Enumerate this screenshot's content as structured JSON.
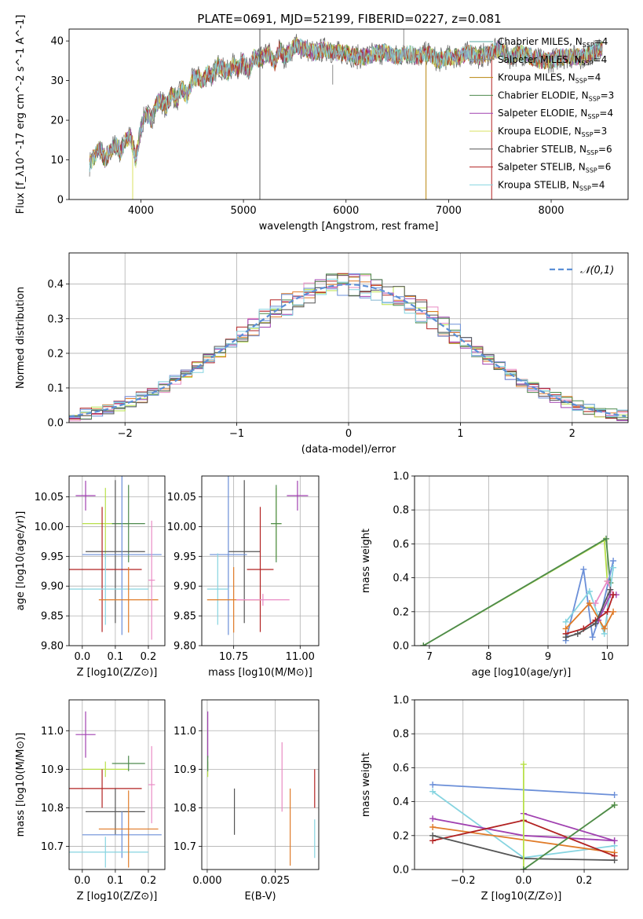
{
  "figure": {
    "title": "PLATE=0691, MJD=52199, FIBERID=0227, z=0.081"
  },
  "colors": {
    "Chabrier MILES": "#5aa9a1",
    "Salpeter MILES": "#8a8a8a",
    "Kroupa MILES": "#b8860b",
    "Chabrier ELODIE": "#4d8a4d",
    "Salpeter ELODIE": "#a040b0",
    "Kroupa ELODIE": "#d8e060",
    "Chabrier STELIB": "#555555",
    "Salpeter STELIB": "#b22222",
    "Kroupa STELIB": "#86d4e0",
    "normal_curve": "#5b8fd6",
    "pink": "#e98bc4",
    "orange": "#e07b28",
    "blue": "#6b8fd8",
    "lime": "#b8e04a"
  },
  "chart_data": [
    {
      "id": "spectrum",
      "type": "line",
      "xlabel": "wavelength [Angstrom, rest frame]",
      "ylabel": "Flux [f_λ10^-17 erg cm^-2 s^-1 A^-1]",
      "xlim": [
        3300,
        8750
      ],
      "ylim": [
        0,
        43
      ],
      "xticks": [
        4000,
        5000,
        6000,
        7000,
        8000
      ],
      "yticks": [
        0,
        10,
        20,
        30,
        40
      ],
      "legend_position": "upper-right",
      "legend": [
        {
          "model": "Chabrier MILES",
          "n": "4"
        },
        {
          "model": "Salpeter MILES",
          "n": "4"
        },
        {
          "model": "Kroupa MILES",
          "n": "4"
        },
        {
          "model": "Chabrier ELODIE",
          "n": "3"
        },
        {
          "model": "Salpeter ELODIE",
          "n": "4"
        },
        {
          "model": "Kroupa ELODIE",
          "n": "3"
        },
        {
          "model": "Chabrier STELIB",
          "n": "6"
        },
        {
          "model": "Salpeter STELIB",
          "n": "6"
        },
        {
          "model": "Kroupa STELIB",
          "n": "4"
        }
      ],
      "x": [
        3500,
        3550,
        3600,
        3650,
        3700,
        3750,
        3800,
        3850,
        3900,
        3950,
        4000,
        4050,
        4100,
        4150,
        4200,
        4250,
        4300,
        4350,
        4400,
        4450,
        4500,
        4550,
        4600,
        4650,
        4700,
        4750,
        4800,
        4850,
        4900,
        4950,
        5000,
        5050,
        5100,
        5150,
        5200,
        5250,
        5300,
        5350,
        5400,
        5450,
        5500,
        5600,
        5700,
        5800,
        5900,
        6000,
        6100,
        6200,
        6300,
        6400,
        6500,
        6600,
        6700,
        6800,
        6900,
        7000,
        7100,
        7200,
        7300,
        7400,
        7500,
        7600,
        7700,
        7800,
        7900,
        8000,
        8100,
        8200,
        8300,
        8400,
        8500
      ],
      "y": [
        9,
        11,
        13,
        10,
        12,
        14,
        12,
        15,
        16,
        10,
        18,
        22,
        20,
        24,
        25,
        23,
        27,
        25,
        28,
        26,
        30,
        31,
        30,
        32,
        31,
        34,
        33,
        32,
        34,
        33,
        35,
        32,
        36,
        35,
        36,
        37,
        34,
        38,
        36,
        37,
        39,
        38,
        37,
        38,
        37,
        37,
        36,
        36,
        37,
        37,
        36,
        37,
        36,
        37,
        35,
        36,
        36,
        37,
        36,
        37,
        38,
        36,
        37,
        36,
        35,
        35,
        36,
        36,
        36,
        37,
        38
      ],
      "spikes": [
        {
          "x": 5160,
          "y_from": 0,
          "y_to": 43,
          "series": "Chabrier STELIB"
        },
        {
          "x": 5870,
          "y_from": 29,
          "y_to": 34,
          "series": "Salpeter MILES"
        },
        {
          "x": 6563,
          "y_from": 36,
          "y_to": 43,
          "series": "Salpeter MILES"
        },
        {
          "x": 6780,
          "y_from": 0,
          "y_to": 35,
          "series": "Kroupa MILES"
        },
        {
          "x": 7420,
          "y_from": 0,
          "y_to": 36,
          "series": "Salpeter STELIB"
        },
        {
          "x": 3920,
          "y_from": 0,
          "y_to": 16,
          "series": "Kroupa ELODIE"
        }
      ]
    },
    {
      "id": "residuals",
      "type": "line",
      "xlabel": "(data-model)/error",
      "ylabel": "Normed distribution",
      "xlim": [
        -2.5,
        2.5
      ],
      "ylim": [
        0,
        0.49
      ],
      "xticks": [
        -2,
        -1,
        0,
        1,
        2
      ],
      "yticks": [
        0.0,
        0.1,
        0.2,
        0.3,
        0.4
      ],
      "legend": [
        {
          "label": "𝒩(0,1)"
        }
      ],
      "legend_position": "upper-right",
      "bin_width": 0.1
    },
    {
      "id": "age_vs_Z",
      "type": "scatter",
      "xlabel": "Z [log10(Z/Z⊙)]",
      "ylabel": "age  [log10(age/yr)]",
      "xlim": [
        -0.04,
        0.25
      ],
      "ylim": [
        9.8,
        10.085
      ],
      "xticks": [
        0.0,
        0.1,
        0.2
      ],
      "yticks": [
        9.8,
        9.85,
        9.9,
        9.95,
        10.0,
        10.05
      ],
      "points": [
        {
          "color": "#a040b0",
          "x": 0.01,
          "xerr": 0.03,
          "y": 10.052,
          "yerr": 0.025
        },
        {
          "color": "#b8e04a",
          "x": 0.07,
          "xerr": 0.07,
          "y": 10.005,
          "yerr": 0.06
        },
        {
          "color": "#4d8a4d",
          "x": 0.14,
          "xerr": 0.05,
          "y": 10.005,
          "yerr": 0.065
        },
        {
          "color": "#555555",
          "x": 0.1,
          "xerr": 0.09,
          "y": 9.958,
          "yerr": 0.12
        },
        {
          "color": "#6b8fd8",
          "x": 0.12,
          "xerr": 0.12,
          "y": 9.953,
          "yerr": 0.135
        },
        {
          "color": "#b22222",
          "x": 0.06,
          "xerr": 0.12,
          "y": 9.928,
          "yerr": 0.105
        },
        {
          "color": "#86d4e0",
          "x": 0.07,
          "xerr": 0.13,
          "y": 9.895,
          "yerr": 0.06
        },
        {
          "color": "#e07b28",
          "x": 0.14,
          "xerr": 0.09,
          "y": 9.877,
          "yerr": 0.055
        },
        {
          "color": "#e98bc4",
          "x": 0.21,
          "xerr": 0.01,
          "y": 9.91,
          "yerr": 0.1
        }
      ]
    },
    {
      "id": "age_vs_mass",
      "type": "scatter",
      "xlabel": "mass [log10(M/M⊙)]",
      "ylabel": "",
      "xlim": [
        10.63,
        11.07
      ],
      "ylim": [
        9.8,
        10.085
      ],
      "xticks": [
        10.75,
        11.0
      ],
      "yticks": [
        9.8,
        9.85,
        9.9,
        9.95,
        10.0,
        10.05
      ],
      "points": [
        {
          "color": "#a040b0",
          "x": 10.99,
          "xerr": 0.04,
          "y": 10.052,
          "yerr": 0.025
        },
        {
          "color": "#b8e04a",
          "x": 10.91,
          "xerr": 0.02,
          "y": 10.005,
          "yerr": 0.06
        },
        {
          "color": "#4d8a4d",
          "x": 10.91,
          "xerr": 0.02,
          "y": 10.005,
          "yerr": 0.065
        },
        {
          "color": "#555555",
          "x": 10.79,
          "xerr": 0.06,
          "y": 9.958,
          "yerr": 0.12
        },
        {
          "color": "#6b8fd8",
          "x": 10.73,
          "xerr": 0.07,
          "y": 9.953,
          "yerr": 0.135
        },
        {
          "color": "#b22222",
          "x": 10.85,
          "xerr": 0.05,
          "y": 9.928,
          "yerr": 0.105
        },
        {
          "color": "#86d4e0",
          "x": 10.69,
          "xerr": 0.04,
          "y": 9.895,
          "yerr": 0.06
        },
        {
          "color": "#e07b28",
          "x": 10.75,
          "xerr": 0.1,
          "y": 9.877,
          "yerr": 0.055
        },
        {
          "color": "#e98bc4",
          "x": 10.86,
          "xerr": 0.1,
          "y": 9.877,
          "yerr": 0.01
        }
      ]
    },
    {
      "id": "weight_vs_age",
      "type": "line",
      "xlabel": "age  [log10(age/yr)]",
      "ylabel": "mass weight",
      "xlim": [
        6.75,
        10.35
      ],
      "ylim": [
        0,
        1.0
      ],
      "xticks": [
        7,
        8,
        9,
        10
      ],
      "yticks": [
        0.0,
        0.2,
        0.4,
        0.6,
        0.8,
        1.0
      ],
      "series": [
        {
          "color": "#b8e04a",
          "x": [
            6.9,
            9.95,
            10.0
          ],
          "y": [
            0.0,
            0.62,
            0.38
          ]
        },
        {
          "color": "#4d8a4d",
          "x": [
            6.9,
            9.98,
            10.05
          ],
          "y": [
            0.0,
            0.63,
            0.37
          ]
        },
        {
          "color": "#6b8fd8",
          "x": [
            9.3,
            9.6,
            9.75,
            9.9,
            10.1
          ],
          "y": [
            0.03,
            0.45,
            0.05,
            0.2,
            0.5
          ]
        },
        {
          "color": "#86d4e0",
          "x": [
            9.3,
            9.7,
            9.95,
            10.1
          ],
          "y": [
            0.14,
            0.32,
            0.07,
            0.46
          ]
        },
        {
          "color": "#e07b28",
          "x": [
            9.3,
            9.7,
            9.95,
            10.1
          ],
          "y": [
            0.1,
            0.25,
            0.1,
            0.2
          ]
        },
        {
          "color": "#e98bc4",
          "x": [
            9.8,
            10.0,
            10.1
          ],
          "y": [
            0.25,
            0.38,
            0.3
          ]
        },
        {
          "color": "#a040b0",
          "x": [
            9.85,
            10.05,
            10.15
          ],
          "y": [
            0.15,
            0.3,
            0.3
          ]
        },
        {
          "color": "#b22222",
          "x": [
            9.3,
            9.6,
            9.8,
            10.0,
            10.1
          ],
          "y": [
            0.07,
            0.1,
            0.15,
            0.2,
            0.3
          ]
        },
        {
          "color": "#555555",
          "x": [
            9.3,
            9.5,
            9.8,
            10.05
          ],
          "y": [
            0.05,
            0.07,
            0.13,
            0.33
          ]
        }
      ]
    },
    {
      "id": "mass_vs_Z",
      "type": "scatter",
      "xlabel": "Z [log10(Z/Z⊙)]",
      "ylabel": "mass [log10(M/M⊙)]",
      "xlim": [
        -0.04,
        0.25
      ],
      "ylim": [
        10.64,
        11.08
      ],
      "xticks": [
        0.0,
        0.1,
        0.2
      ],
      "yticks": [
        10.7,
        10.8,
        10.9,
        11.0
      ],
      "points": [
        {
          "color": "#a040b0",
          "x": 0.01,
          "xerr": 0.03,
          "y": 10.99,
          "yerr": 0.06
        },
        {
          "color": "#b8e04a",
          "x": 0.07,
          "xerr": 0.07,
          "y": 10.9,
          "yerr": 0.02
        },
        {
          "color": "#4d8a4d",
          "x": 0.14,
          "xerr": 0.05,
          "y": 10.915,
          "yerr": 0.02
        },
        {
          "color": "#b22222",
          "x": 0.06,
          "xerr": 0.12,
          "y": 10.85,
          "yerr": 0.05
        },
        {
          "color": "#555555",
          "x": 0.1,
          "xerr": 0.09,
          "y": 10.79,
          "yerr": 0.06
        },
        {
          "color": "#e98bc4",
          "x": 0.21,
          "xerr": 0.01,
          "y": 10.86,
          "yerr": 0.1
        },
        {
          "color": "#6b8fd8",
          "x": 0.12,
          "xerr": 0.12,
          "y": 10.73,
          "yerr": 0.06
        },
        {
          "color": "#86d4e0",
          "x": 0.07,
          "xerr": 0.13,
          "y": 10.685,
          "yerr": 0.04
        },
        {
          "color": "#e07b28",
          "x": 0.14,
          "xerr": 0.09,
          "y": 10.745,
          "yerr": 0.1
        }
      ]
    },
    {
      "id": "mass_vs_ebv",
      "type": "scatter",
      "xlabel": "E(B-V)",
      "ylabel": "",
      "xlim": [
        -0.002,
        0.041
      ],
      "ylim": [
        10.64,
        11.08
      ],
      "xticks": [
        0.0,
        0.025
      ],
      "xtick_labels": [
        "0.000",
        "0.025"
      ],
      "yticks": [
        10.7,
        10.8,
        10.9,
        11.0
      ],
      "points": [
        {
          "color": "#a040b0",
          "x": 0.0002,
          "y": 10.99,
          "yerr": 0.06
        },
        {
          "color": "#b8e04a",
          "x": 0.0002,
          "y": 10.9,
          "yerr": 0.02
        },
        {
          "color": "#4d8a4d",
          "x": 0.0002,
          "y": 10.915,
          "yerr": 0.02
        },
        {
          "color": "#555555",
          "x": 0.01,
          "y": 10.79,
          "yerr": 0.06
        },
        {
          "color": "#e98bc4",
          "x": 0.0275,
          "y": 10.88,
          "yerr": 0.09
        },
        {
          "color": "#e07b28",
          "x": 0.0305,
          "y": 10.75,
          "yerr": 0.1
        },
        {
          "color": "#b22222",
          "x": 0.0395,
          "y": 10.85,
          "yerr": 0.05
        },
        {
          "color": "#86d4e0",
          "x": 0.0395,
          "y": 10.72,
          "yerr": 0.05
        }
      ]
    },
    {
      "id": "weight_vs_Z",
      "type": "line",
      "xlabel": "Z [log10(Z/Z⊙)]",
      "ylabel": "mass weight",
      "xlim": [
        -0.36,
        0.345
      ],
      "ylim": [
        0,
        1.0
      ],
      "xticks": [
        -0.2,
        0.0,
        0.2
      ],
      "xtick_labels": [
        "−0.2",
        "0.0",
        "0.2"
      ],
      "yticks": [
        0.0,
        0.2,
        0.4,
        0.6,
        0.8,
        1.0
      ],
      "series": [
        {
          "color": "#6b8fd8",
          "x": [
            -0.3,
            0.3
          ],
          "y": [
            0.5,
            0.44
          ]
        },
        {
          "color": "#86d4e0",
          "x": [
            -0.3,
            0.0,
            0.3
          ],
          "y": [
            0.46,
            0.07,
            0.14
          ]
        },
        {
          "color": "#a040b0",
          "x": [
            -0.3,
            0.0,
            0.3
          ],
          "y": [
            0.3,
            0.2,
            0.17
          ]
        },
        {
          "color": "#a040b0",
          "x": [
            0.0,
            0.3
          ],
          "y": [
            0.33,
            0.17
          ]
        },
        {
          "color": "#e07b28",
          "x": [
            -0.3,
            0.3
          ],
          "y": [
            0.25,
            0.1
          ]
        },
        {
          "color": "#b22222",
          "x": [
            -0.3,
            0.0,
            0.3
          ],
          "y": [
            0.17,
            0.29,
            0.08
          ]
        },
        {
          "color": "#555555",
          "x": [
            -0.3,
            0.0,
            0.3
          ],
          "y": [
            0.2,
            0.065,
            0.055
          ]
        },
        {
          "color": "#b8e04a",
          "x": [
            0.0,
            0.0,
            0.3
          ],
          "y": [
            0.62,
            0.0,
            0.38
          ]
        },
        {
          "color": "#4d8a4d",
          "x": [
            0.0,
            0.3
          ],
          "y": [
            0.0,
            0.38
          ]
        }
      ]
    }
  ]
}
